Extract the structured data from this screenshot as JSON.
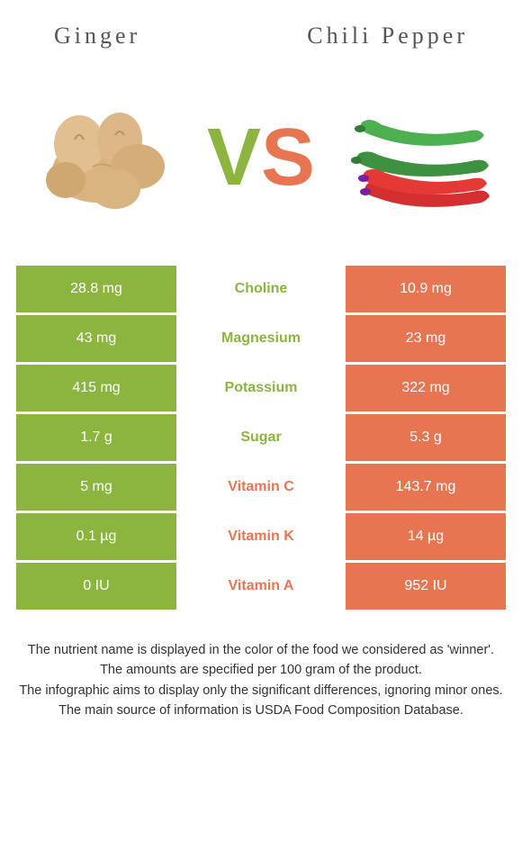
{
  "header": {
    "left_title": "Ginger",
    "right_title": "Chili Pepper"
  },
  "vs": {
    "v": "V",
    "s": "S"
  },
  "colors": {
    "left_bg": "#8bb53f",
    "right_bg": "#e87552",
    "left_text": "#8bb53f",
    "right_text": "#e87552"
  },
  "rows": [
    {
      "left": "28.8 mg",
      "label": "Choline",
      "right": "10.9 mg",
      "winner": "left"
    },
    {
      "left": "43 mg",
      "label": "Magnesium",
      "right": "23 mg",
      "winner": "left"
    },
    {
      "left": "415 mg",
      "label": "Potassium",
      "right": "322 mg",
      "winner": "left"
    },
    {
      "left": "1.7 g",
      "label": "Sugar",
      "right": "5.3 g",
      "winner": "left"
    },
    {
      "left": "5 mg",
      "label": "Vitamin C",
      "right": "143.7 mg",
      "winner": "right"
    },
    {
      "left": "0.1 µg",
      "label": "Vitamin K",
      "right": "14 µg",
      "winner": "right"
    },
    {
      "left": "0 IU",
      "label": "Vitamin A",
      "right": "952 IU",
      "winner": "right"
    }
  ],
  "footer": {
    "line1": "The nutrient name is displayed in the color of the food we considered as 'winner'.",
    "line2": "The amounts are specified per 100 gram of the product.",
    "line3": "The infographic aims to display only the significant differences, ignoring minor ones.",
    "line4": "The main source of information is USDA Food Composition Database."
  }
}
